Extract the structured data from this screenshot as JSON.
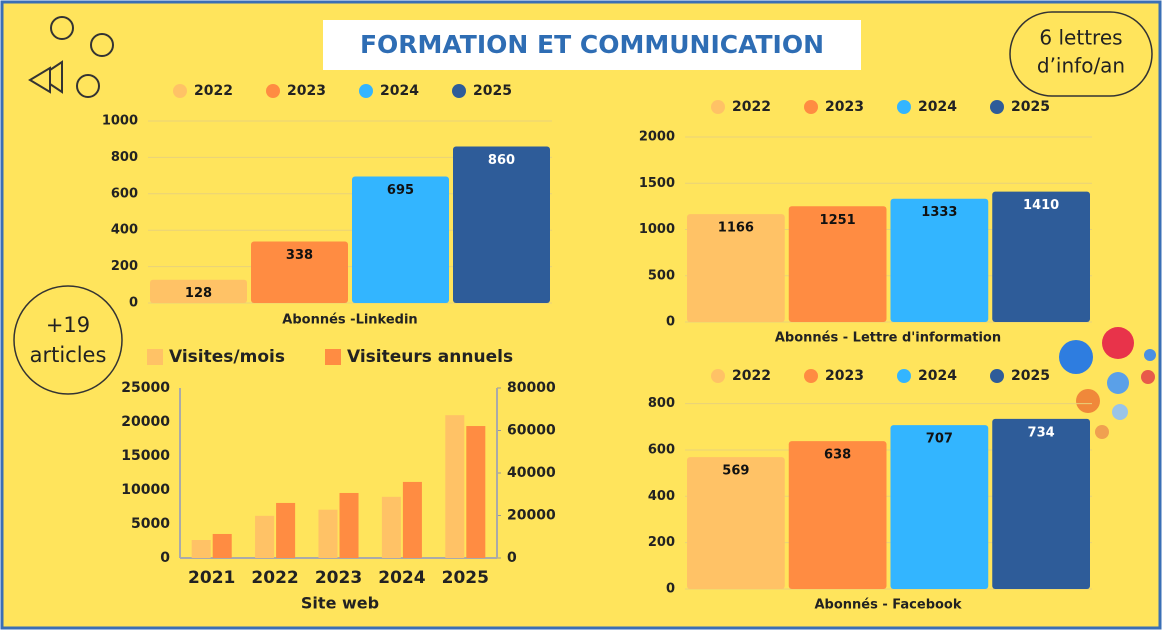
{
  "title": "FORMATION ET COMMUNICATION",
  "badges": [
    {
      "lines": [
        "6 lettres",
        "d’info/an"
      ]
    },
    {
      "lines": [
        "+19",
        "articles"
      ]
    }
  ],
  "chart_data": [
    {
      "type": "bar",
      "x_label": "Abonnés -Linkedin",
      "ylim": [
        0,
        1000
      ],
      "yticks": [
        0,
        200,
        400,
        600,
        800,
        1000
      ],
      "grid": true,
      "legend_marker": "circle",
      "series": [
        {
          "name": "2022",
          "color": "#FFC266",
          "values": [
            128
          ]
        },
        {
          "name": "2023",
          "color": "#FF8C42",
          "values": [
            338
          ]
        },
        {
          "name": "2024",
          "color": "#33B5FF",
          "values": [
            695
          ]
        },
        {
          "name": "2025",
          "color": "#2E5C99",
          "values": [
            860
          ]
        }
      ]
    },
    {
      "type": "bar",
      "x_label": "Abonnés - Lettre d'information",
      "ylim": [
        0,
        2000
      ],
      "yticks": [
        0,
        500,
        1000,
        1500,
        2000
      ],
      "grid": true,
      "legend_marker": "circle",
      "series": [
        {
          "name": "2022",
          "color": "#FFC266",
          "values": [
            1166
          ]
        },
        {
          "name": "2023",
          "color": "#FF8C42",
          "values": [
            1251
          ]
        },
        {
          "name": "2024",
          "color": "#33B5FF",
          "values": [
            1333
          ]
        },
        {
          "name": "2025",
          "color": "#2E5C99",
          "values": [
            1410
          ]
        }
      ]
    },
    {
      "type": "bar",
      "x_label": "Abonnés - Facebook",
      "ylim": [
        0,
        850
      ],
      "yticks": [
        0,
        200,
        400,
        600,
        800
      ],
      "grid": true,
      "legend_marker": "circle",
      "series": [
        {
          "name": "2022",
          "color": "#FFC266",
          "values": [
            569
          ]
        },
        {
          "name": "2023",
          "color": "#FF8C42",
          "values": [
            638
          ]
        },
        {
          "name": "2024",
          "color": "#33B5FF",
          "values": [
            707
          ]
        },
        {
          "name": "2025",
          "color": "#2E5C99",
          "values": [
            734
          ]
        }
      ]
    },
    {
      "type": "bar",
      "x_label": "Site web",
      "categories": [
        "2021",
        "2022",
        "2023",
        "2024",
        "2025"
      ],
      "ylim": [
        0,
        25000
      ],
      "yticks": [
        0,
        5000,
        10000,
        15000,
        20000,
        25000
      ],
      "y2lim": [
        0,
        80000
      ],
      "y2ticks": [
        0,
        20000,
        40000,
        60000,
        80000
      ],
      "grid": false,
      "legend_marker": "square",
      "series": [
        {
          "name": "Visites/mois",
          "color": "#FFC266",
          "values": [
            2650,
            6200,
            7100,
            9000,
            21000
          ]
        },
        {
          "name": "Visiteurs annuels",
          "color": "#FF8C42",
          "axis": "y2",
          "values": [
            11300,
            25900,
            30600,
            35800,
            62100
          ]
        }
      ]
    }
  ]
}
